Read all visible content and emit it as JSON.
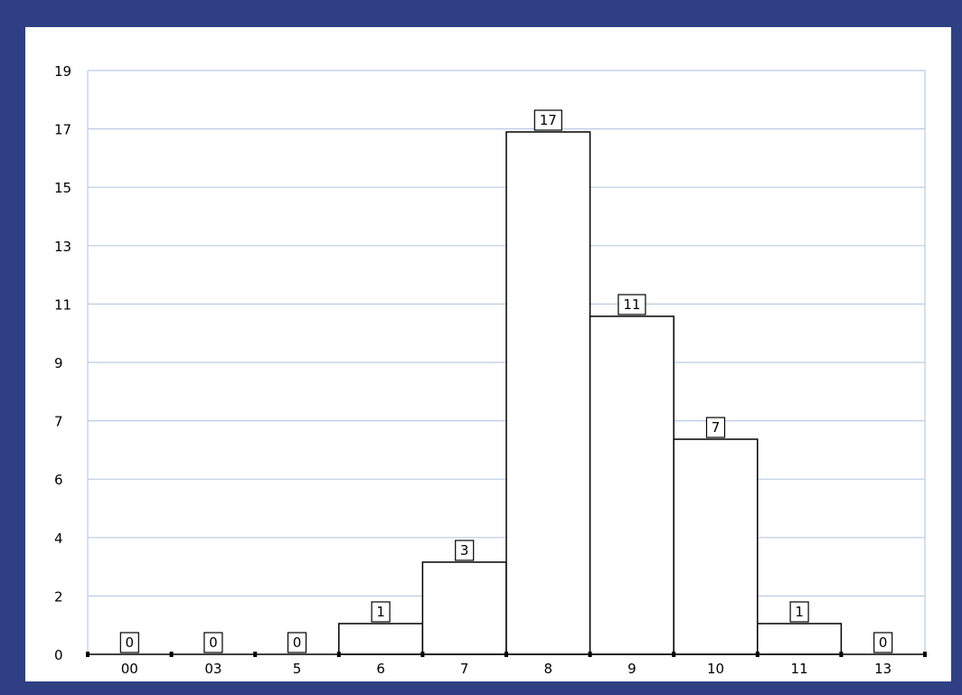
{
  "chart_data": {
    "type": "bar",
    "title": "",
    "xlabel": "",
    "ylabel": "",
    "grid": true,
    "colors": {
      "frame": "#2e3f84",
      "grid": "#b9cbe6",
      "bar_fill": "#ffffff",
      "bar_stroke": "#000000"
    },
    "categories": [
      "00",
      "03",
      "5",
      "6",
      "7",
      "8",
      "9",
      "10",
      "11",
      "13"
    ],
    "values": [
      0,
      0,
      0,
      1,
      3,
      17,
      11,
      7,
      1,
      0
    ],
    "y_ticks": [
      "0",
      "2",
      "4",
      "6",
      "7",
      "9",
      "11",
      "13",
      "15",
      "17",
      "19"
    ],
    "ylim": [
      0,
      19
    ]
  }
}
